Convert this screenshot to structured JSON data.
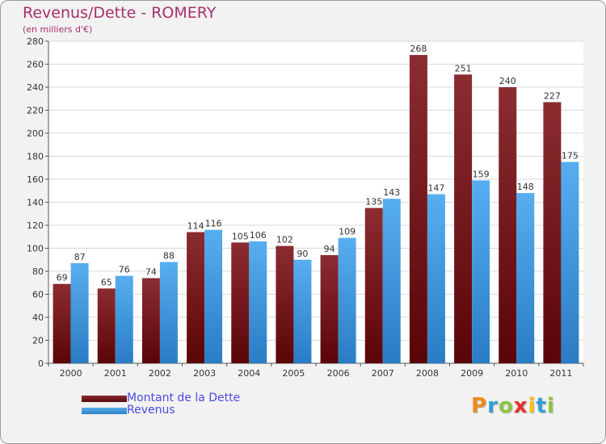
{
  "chart_data": {
    "type": "bar",
    "title": "Revenus/Dette - ROMERY",
    "subtitle": "(en milliers d'€)",
    "categories": [
      "2000",
      "2001",
      "2002",
      "2003",
      "2004",
      "2005",
      "2006",
      "2007",
      "2008",
      "2009",
      "2010",
      "2011"
    ],
    "series": [
      {
        "name": "Montant de la Dette",
        "color": "#7a1f22",
        "values": [
          69,
          65,
          74,
          114,
          105,
          102,
          94,
          135,
          268,
          251,
          240,
          227
        ]
      },
      {
        "name": "Revenus",
        "color": "#3f95dd",
        "values": [
          87,
          76,
          88,
          116,
          106,
          90,
          109,
          143,
          147,
          159,
          148,
          175
        ]
      }
    ],
    "ylim": [
      0,
      280
    ],
    "yticks": [
      0,
      20,
      40,
      60,
      80,
      100,
      120,
      140,
      160,
      180,
      200,
      220,
      240,
      260,
      280
    ],
    "grid": true,
    "legend_position": "bottom-left"
  },
  "logo": {
    "letters": [
      "P",
      "r",
      "o",
      "x",
      "i",
      "t",
      "i"
    ],
    "colors": [
      "#f08a1c",
      "#2f9fd8",
      "#8cc63f",
      "#e8302a",
      "#f5c20f",
      "#2f9fd8",
      "#8cc63f"
    ]
  }
}
